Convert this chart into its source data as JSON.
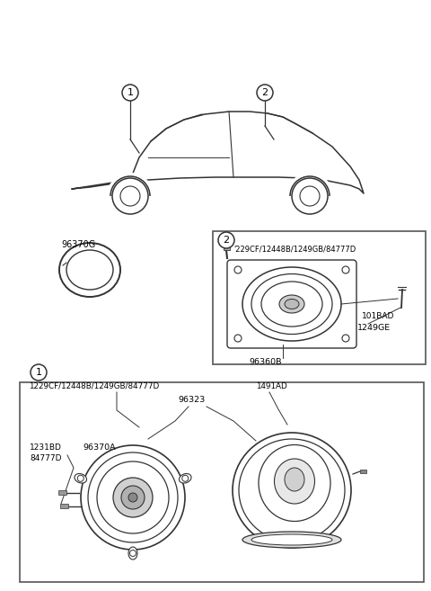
{
  "bg_color": "#ffffff",
  "fig_width": 4.8,
  "fig_height": 6.57,
  "dpi": 100,
  "lc": "#333333",
  "cc": "#333333",
  "box_ec": "#555555",
  "part_96370G": "96370G",
  "part_96360B": "96360B",
  "part_1229CF_top": "1229CF/12448B/1249GB/84777D",
  "part_229CF_box2": "'229CF/12448B/1249GB/84777D",
  "part_1231BD": "1231BD",
  "part_84777D": "84777D",
  "part_96370A": "96370A",
  "part_96323": "96323",
  "part_1491AD": "1491AD",
  "part_101BAD": "101BAD",
  "part_1249GE": "1249GE",
  "callout1": "1",
  "callout2": "2"
}
